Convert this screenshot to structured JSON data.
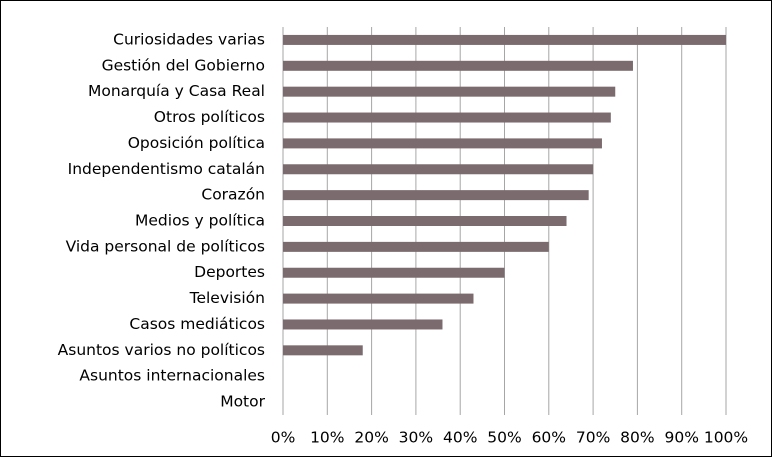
{
  "chart_data": {
    "type": "bar",
    "orientation": "horizontal",
    "categories": [
      "Curiosidades varias",
      "Gestión del Gobierno",
      "Monarquía y Casa Real",
      "Otros políticos",
      "Oposición política",
      "Independentismo catalán",
      "Corazón",
      "Medios y política",
      "Vida personal de políticos",
      "Deportes",
      "Televisión",
      "Casos mediáticos",
      "Asuntos varios no políticos",
      "Asuntos internacionales",
      "Motor"
    ],
    "values": [
      100,
      79,
      75,
      74,
      72,
      70,
      69,
      64,
      60,
      50,
      43,
      36,
      18,
      0,
      0
    ],
    "color": "#7b6b6e",
    "xlim": [
      0,
      100
    ],
    "xticks": [
      {
        "value": 0,
        "label": "0%"
      },
      {
        "value": 10,
        "label": "10%"
      },
      {
        "value": 20,
        "label": "20%"
      },
      {
        "value": 30,
        "label": "30%"
      },
      {
        "value": 40,
        "label": "40%"
      },
      {
        "value": 50,
        "label": "50%"
      },
      {
        "value": 60,
        "label": "60%"
      },
      {
        "value": 70,
        "label": "70%"
      },
      {
        "value": 80,
        "label": "80%"
      },
      {
        "value": 90,
        "label": "90%"
      },
      {
        "value": 100,
        "label": "100%"
      }
    ],
    "grid": true
  }
}
